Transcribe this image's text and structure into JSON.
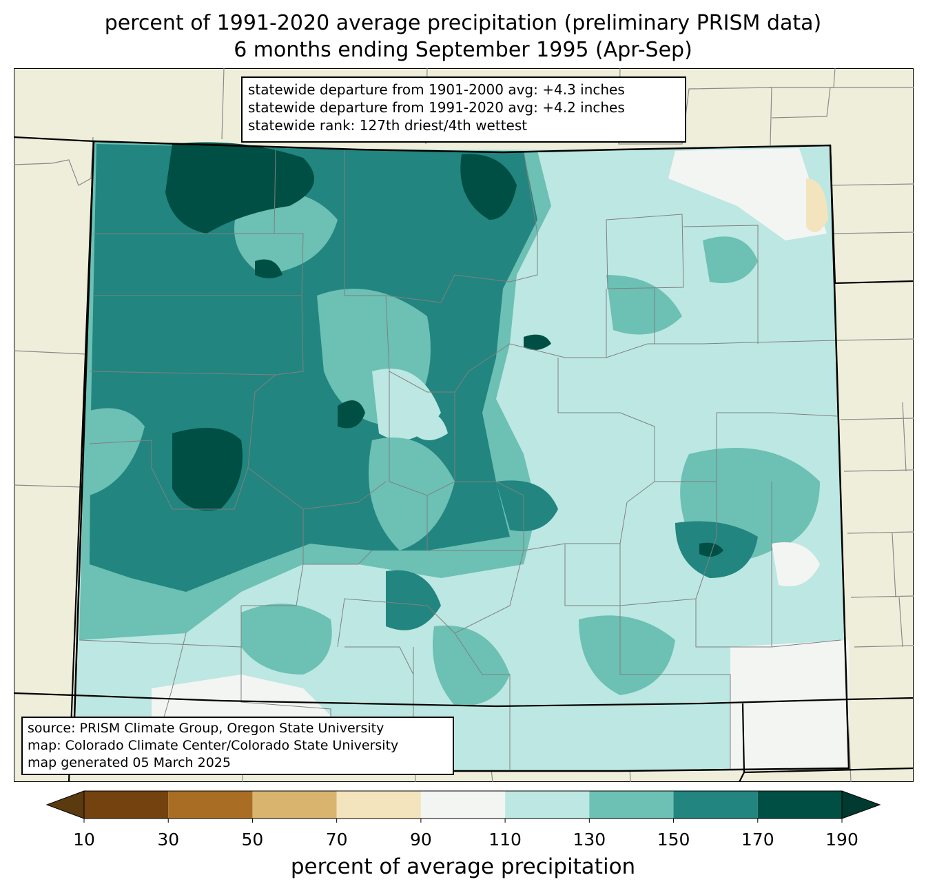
{
  "title": {
    "line1": "percent of 1991-2020 average precipitation (preliminary PRISM data)",
    "line2": "6 months ending September 1995 (Apr-Sep)"
  },
  "stats": {
    "line1": "statewide departure from 1901-2000 avg: +4.3 inches",
    "line2": "statewide departure from 1991-2020 avg: +4.2 inches",
    "line3": "statewide rank: 127th driest/4th wettest"
  },
  "source": {
    "line1": "source: PRISM Climate Group, Oregon State University",
    "line2": "map: Colorado Climate Center/Colorado State University",
    "line3": "map generated 05 March 2025"
  },
  "colorbar": {
    "label": "percent of average precipitation",
    "ticks": [
      "10",
      "30",
      "50",
      "70",
      "90",
      "110",
      "130",
      "150",
      "170",
      "190"
    ],
    "colors": [
      "#5a3a0e",
      "#74420f",
      "#a96e24",
      "#d8b46f",
      "#f3e4bd",
      "#f3f5f3",
      "#bde7e2",
      "#6cc0b4",
      "#22857f",
      "#004f45",
      "#003a30"
    ]
  },
  "map_colors": {
    "background": "#efeedb",
    "outside_lines": "#8a8a8a",
    "county_lines": "#808080",
    "state_border": "#000000"
  }
}
